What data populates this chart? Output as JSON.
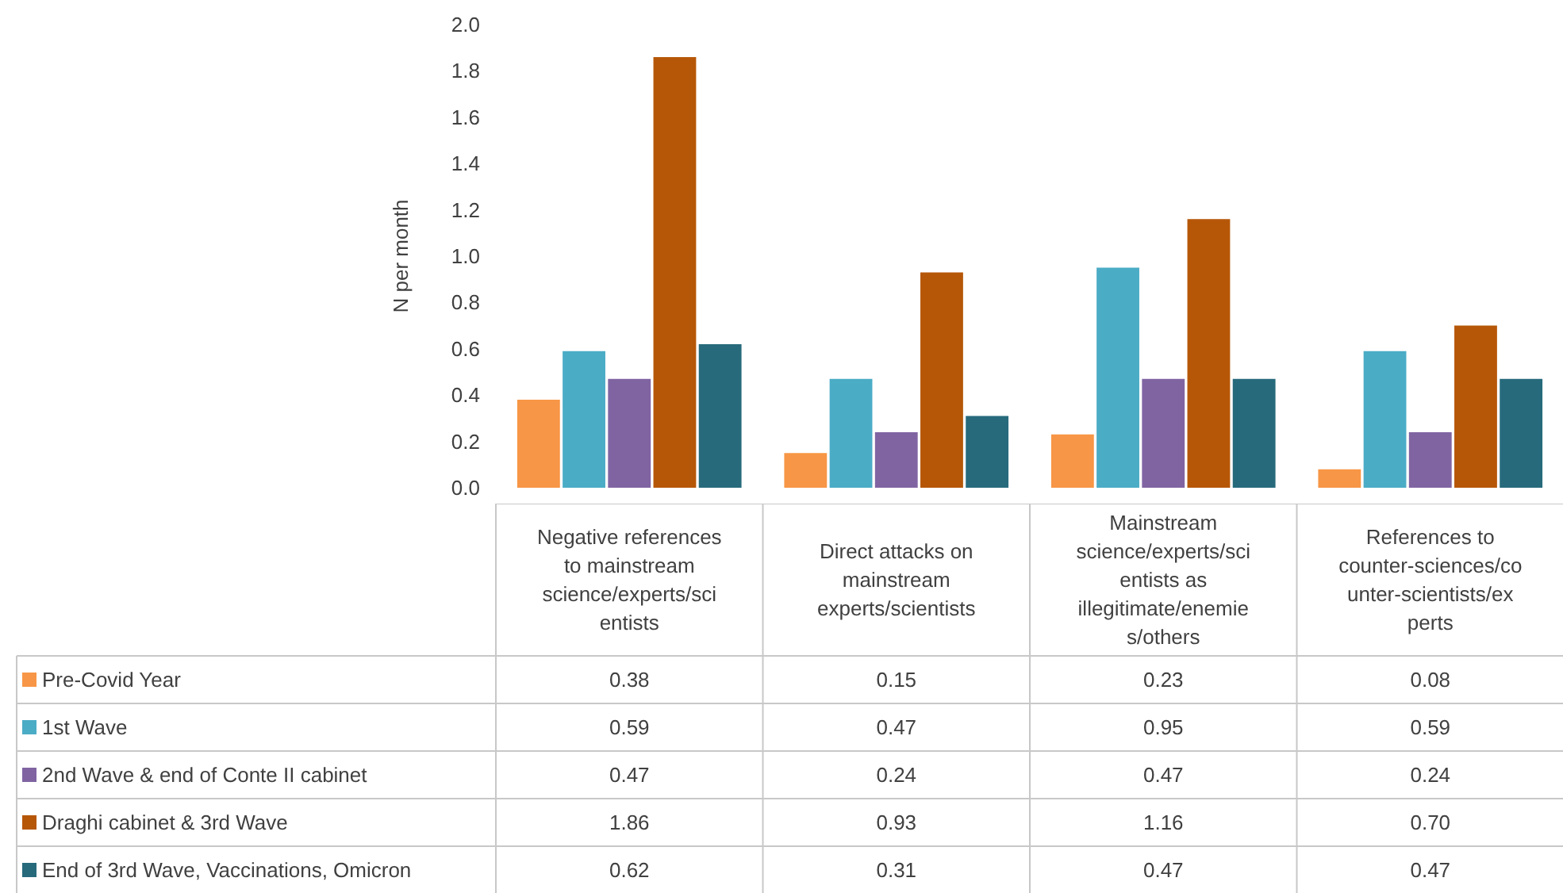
{
  "chart_data": {
    "type": "bar",
    "ylabel": "N per month",
    "categories": [
      "Negative references to mainstream science/experts/scientists",
      "Direct attacks on mainstream experts/scientists",
      "Mainstream science/experts/scientists as illegitimate/enemies/others",
      "References to counter-sciences/counter-scientists/experts"
    ],
    "series": [
      {
        "name": "Pre-Covid Year",
        "color": "#f79646",
        "values": [
          0.38,
          0.15,
          0.23,
          0.08
        ]
      },
      {
        "name": "1st Wave",
        "color": "#4bacc6",
        "values": [
          0.59,
          0.47,
          0.95,
          0.59
        ]
      },
      {
        "name": "2nd Wave & end of Conte II cabinet",
        "color": "#8064a2",
        "values": [
          0.47,
          0.24,
          0.47,
          0.24
        ]
      },
      {
        "name": "Draghi cabinet & 3rd Wave",
        "color": "#b65708",
        "values": [
          1.86,
          0.93,
          1.16,
          0.7
        ],
        "value_labels": [
          "1.86",
          "0.93",
          "1.16",
          "0.70"
        ]
      },
      {
        "name": "End of 3rd Wave, Vaccinations, Omicron",
        "color": "#276a7c",
        "values": [
          0.62,
          0.31,
          0.47,
          0.47
        ]
      }
    ],
    "ylim": [
      0,
      2
    ],
    "yticks": [
      {
        "value": 0,
        "label": "0.0"
      },
      {
        "value": 0.2,
        "label": "0.2"
      },
      {
        "value": 0.4,
        "label": "0.4"
      },
      {
        "value": 0.6,
        "label": "0.6"
      },
      {
        "value": 0.8,
        "label": "0.8"
      },
      {
        "value": 1,
        "label": "1.0"
      },
      {
        "value": 1.2,
        "label": "1.2"
      },
      {
        "value": 1.4,
        "label": "1.4"
      },
      {
        "value": 1.6,
        "label": "1.6"
      },
      {
        "value": 1.8,
        "label": "1.8"
      },
      {
        "value": 2,
        "label": "2.0"
      }
    ],
    "grid": false,
    "legend": "bottom",
    "data_labels": true
  }
}
